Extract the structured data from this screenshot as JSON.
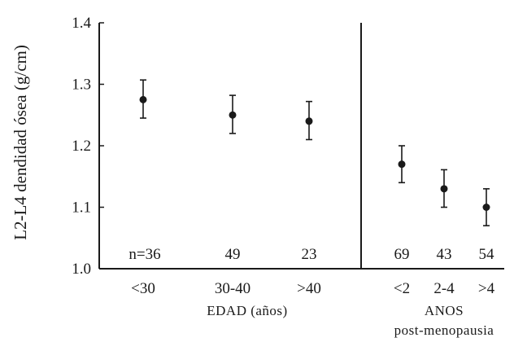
{
  "chart_data": {
    "type": "scatter",
    "ylabel": "L2-L4 dendidad ósea (g/cm)",
    "ylim": [
      1.0,
      1.4
    ],
    "yticks": [
      "1.0",
      "1.1",
      "1.2",
      "1.3",
      "1.4"
    ],
    "error_bars": true,
    "grid": false,
    "groups": [
      {
        "label": "EDAD (años)",
        "categories": [
          "<30",
          "30-40",
          ">40"
        ],
        "values": [
          1.275,
          1.25,
          1.24
        ],
        "error_low": [
          1.245,
          1.22,
          1.21
        ],
        "error_high": [
          1.307,
          1.282,
          1.272
        ],
        "n_labels": [
          "n=36",
          "49",
          "23"
        ]
      },
      {
        "label": "ANOS",
        "sublabel": "post-menopausia",
        "categories": [
          "<2",
          "2-4",
          ">4"
        ],
        "values": [
          1.17,
          1.13,
          1.1
        ],
        "error_low": [
          1.14,
          1.1,
          1.07
        ],
        "error_high": [
          1.2,
          1.161,
          1.13
        ],
        "n_labels": [
          "69",
          "43",
          "54"
        ]
      }
    ]
  }
}
